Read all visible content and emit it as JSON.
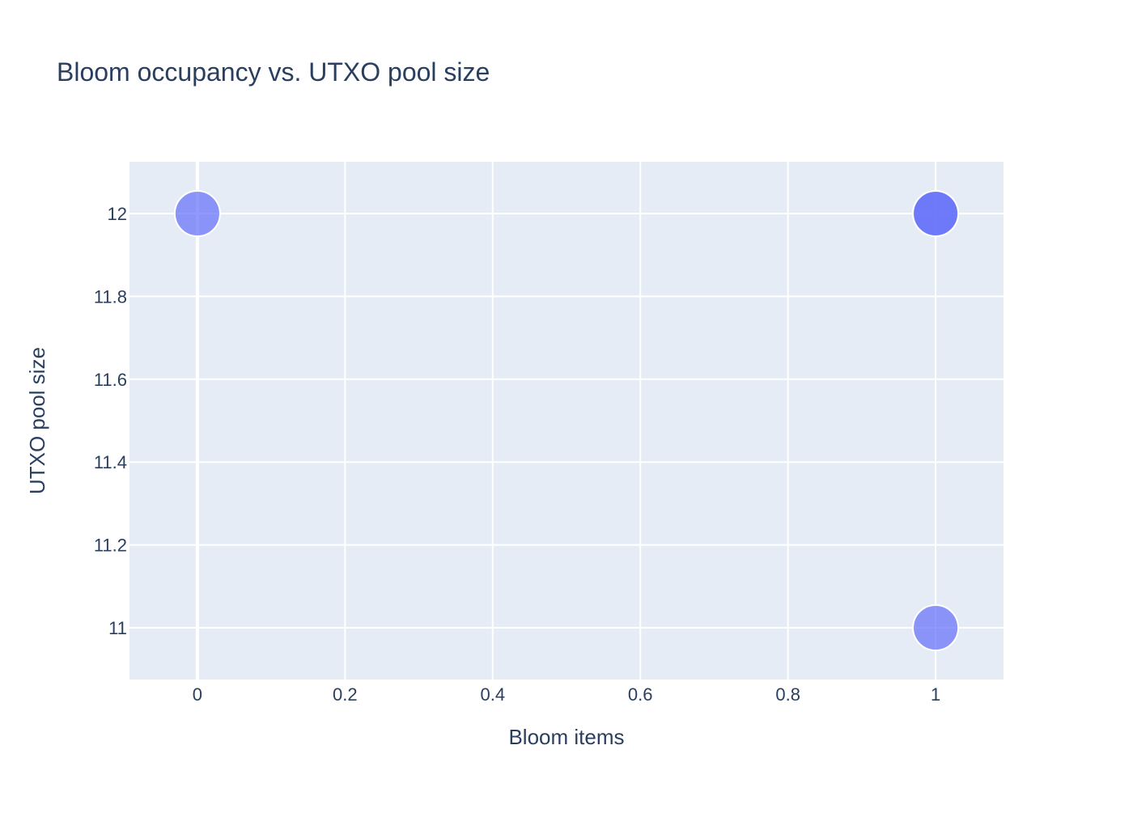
{
  "chart_data": {
    "type": "scatter",
    "title": "Bloom occupancy vs. UTXO pool size",
    "xlabel": "Bloom items",
    "ylabel": "UTXO pool size",
    "xlim": [
      -0.092,
      1.092
    ],
    "ylim": [
      10.875,
      12.125
    ],
    "xticks": [
      0,
      0.2,
      0.4,
      0.6,
      0.8,
      1
    ],
    "xtick_labels": [
      "0",
      "0.2",
      "0.4",
      "0.6",
      "0.8",
      "1"
    ],
    "yticks": [
      11,
      11.2,
      11.4,
      11.6,
      11.8,
      12
    ],
    "ytick_labels": [
      "11",
      "11.2",
      "11.4",
      "11.6",
      "11.8",
      "12"
    ],
    "grid": true,
    "points": [
      {
        "x": 0,
        "y": 12
      },
      {
        "x": 1,
        "y": 12
      },
      {
        "x": 1,
        "y": 12
      },
      {
        "x": 1,
        "y": 11
      }
    ],
    "colors": {
      "marker": "#636efa",
      "plot_bg": "#e5ecf6",
      "grid": "#ffffff",
      "text": "#2a3f5f"
    }
  }
}
